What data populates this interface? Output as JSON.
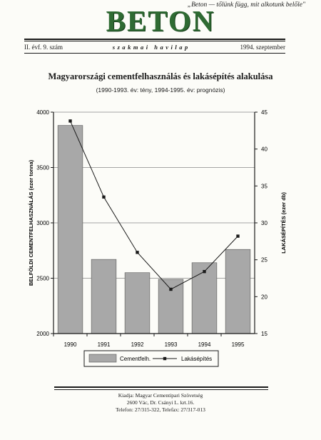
{
  "header": {
    "motto": "„Beton — tőlünk függ, mit alkotunk belőle\"",
    "masthead": "BETON",
    "issue": "II. évf. 9. szám",
    "kind": "szakmai havilap",
    "date": "1994. szeptember"
  },
  "footer": {
    "publisher": "Kiadja: Magyar Cementipari Szövetség",
    "address": "2600 Vác, Dr. Csányi L. krt.16.",
    "phone": "Telefon: 27/315-322, Telefax: 27/317-013"
  },
  "colors": {
    "masthead": "#2f6b33",
    "bars": "#a8a8a8",
    "line": "#1a1a1a"
  },
  "chart_data": {
    "type": "bar",
    "title": "Magyarországi cementfelhasználás és lakásépítés alakulása",
    "subtitle": "(1990-1993. év: tény,   1994-1995. év: prognózis)",
    "categories": [
      "1990",
      "1991",
      "1992",
      "1993",
      "1994",
      "1995"
    ],
    "ylabel": "BELFÖLDI CEMENTFELHASZNÁLÁS (ezer tonna)",
    "ylim": [
      2000,
      4000
    ],
    "yticks": [
      "2000",
      "2500",
      "3000",
      "3500",
      "4000"
    ],
    "y2label": "LAKÁSÉPÍTÉS (ezer db)",
    "y2lim": [
      15,
      45
    ],
    "y2ticks": [
      "15",
      "20",
      "25",
      "30",
      "35",
      "40",
      "45"
    ],
    "grid": true,
    "legend_position": "bottom",
    "series": [
      {
        "name": "Cementfelh.",
        "type": "bar",
        "axis": "left",
        "values": [
          3880,
          2670,
          2550,
          2490,
          2640,
          2760
        ]
      },
      {
        "name": "Lakásépítés",
        "type": "line",
        "axis": "right",
        "values": [
          43.8,
          33.5,
          26.0,
          21.0,
          23.4,
          28.2
        ]
      }
    ]
  }
}
